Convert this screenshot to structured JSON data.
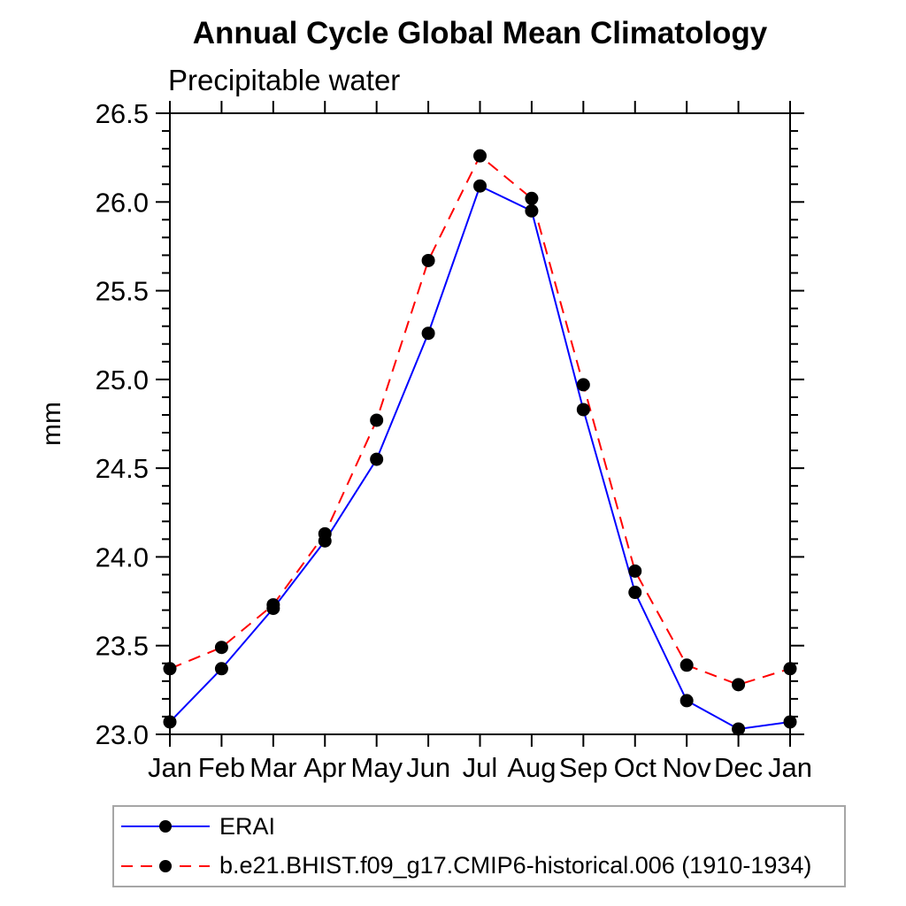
{
  "title": "Annual Cycle Global Mean Climatology",
  "subtitle": "Precipitable water",
  "chart_data": {
    "type": "line",
    "title": "Annual Cycle Global Mean Climatology",
    "subtitle": "Precipitable water",
    "xlabel": "",
    "ylabel": "mm",
    "categories": [
      "Jan",
      "Feb",
      "Mar",
      "Apr",
      "May",
      "Jun",
      "Jul",
      "Aug",
      "Sep",
      "Oct",
      "Nov",
      "Dec",
      "Jan"
    ],
    "ylim": [
      23.0,
      26.5
    ],
    "ytick_step": 0.5,
    "yminor_step": 0.1,
    "grid": false,
    "legend_position": "bottom-left-box",
    "axis_color": "#000000",
    "marker": {
      "shape": "circle",
      "color": "#000000",
      "radius": 7.5
    },
    "series": [
      {
        "name": "ERAI",
        "color": "#0000ff",
        "style": "solid",
        "values": [
          23.07,
          23.37,
          23.71,
          24.09,
          24.55,
          25.26,
          26.09,
          25.95,
          24.83,
          23.8,
          23.19,
          23.03,
          23.07
        ]
      },
      {
        "name": "b.e21.BHIST.f09_g17.CMIP6-historical.006 (1910-1934)",
        "color": "#ff0000",
        "style": "dashed",
        "values": [
          23.37,
          23.49,
          23.73,
          24.13,
          24.77,
          25.67,
          26.26,
          26.02,
          24.97,
          23.92,
          23.39,
          23.28,
          23.37
        ]
      }
    ]
  }
}
